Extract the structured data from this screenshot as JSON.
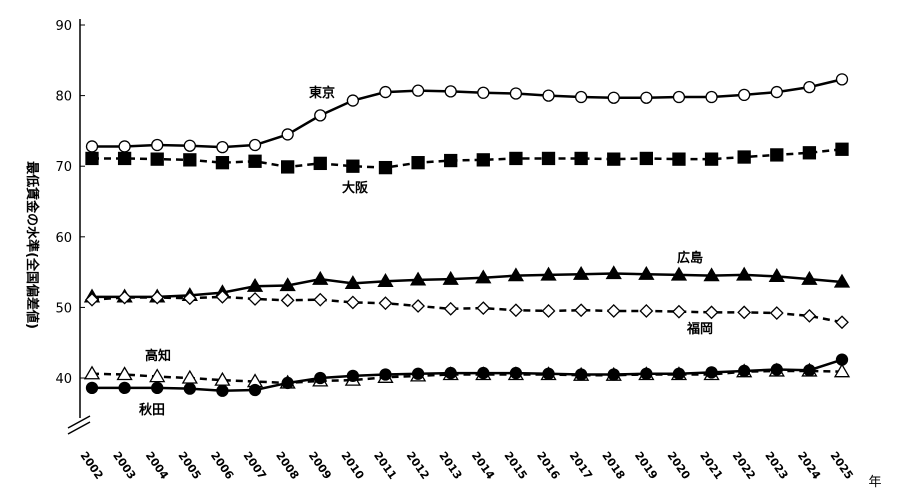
{
  "chart_data": {
    "type": "line",
    "y_label": "最低賃金の水準(全国偏差値)",
    "x_unit": "年",
    "categories": [
      "2002",
      "2003",
      "2004",
      "2005",
      "2006",
      "2007",
      "2008",
      "2009",
      "2010",
      "2011",
      "2012",
      "2013",
      "2014",
      "2015",
      "2016",
      "2017",
      "2018",
      "2019",
      "2020",
      "2021",
      "2022",
      "2023",
      "2024",
      "2025"
    ],
    "ylim": [
      32,
      90
    ],
    "yticks": [
      40,
      50,
      60,
      70,
      80,
      90
    ],
    "axis_break": true,
    "series": [
      {
        "name": "東京",
        "color": "#000000",
        "marker": "circle",
        "marker_fill": "#ffffff",
        "dashed": false,
        "values": [
          72.8,
          72.8,
          73.0,
          72.9,
          72.7,
          73.0,
          74.5,
          77.2,
          79.3,
          80.5,
          80.7,
          80.6,
          80.4,
          80.3,
          80.0,
          79.8,
          79.7,
          79.7,
          79.8,
          79.8,
          80.1,
          80.5,
          81.2,
          82.3
        ]
      },
      {
        "name": "大阪",
        "color": "#000000",
        "marker": "square",
        "marker_fill": "#000000",
        "dashed": true,
        "values": [
          71.1,
          71.1,
          71.0,
          70.9,
          70.5,
          70.7,
          69.9,
          70.4,
          70.0,
          69.8,
          70.5,
          70.8,
          70.9,
          71.1,
          71.1,
          71.1,
          71.0,
          71.1,
          71.0,
          71.0,
          71.3,
          71.6,
          71.9,
          72.4
        ]
      },
      {
        "name": "広島",
        "color": "#000000",
        "marker": "triangle",
        "marker_fill": "#000000",
        "dashed": false,
        "values": [
          51.5,
          51.5,
          51.5,
          51.7,
          52.1,
          53.0,
          53.1,
          54.0,
          53.4,
          53.7,
          53.9,
          54.0,
          54.2,
          54.5,
          54.6,
          54.7,
          54.8,
          54.7,
          54.6,
          54.5,
          54.6,
          54.4,
          54.0,
          53.6
        ]
      },
      {
        "name": "福岡",
        "color": "#000000",
        "marker": "diamond",
        "marker_fill": "#ffffff",
        "dashed": true,
        "values": [
          51.1,
          51.4,
          51.4,
          51.3,
          51.5,
          51.2,
          51.0,
          51.1,
          50.7,
          50.6,
          50.2,
          49.8,
          49.9,
          49.6,
          49.5,
          49.6,
          49.5,
          49.5,
          49.4,
          49.3,
          49.3,
          49.2,
          48.8,
          47.9
        ]
      },
      {
        "name": "高知",
        "color": "#000000",
        "marker": "triangle",
        "marker_fill": "#ffffff",
        "dashed": true,
        "values": [
          40.6,
          40.5,
          40.2,
          40.0,
          39.7,
          39.5,
          39.3,
          39.6,
          39.7,
          40.1,
          40.3,
          40.5,
          40.5,
          40.5,
          40.5,
          40.4,
          40.4,
          40.5,
          40.5,
          40.5,
          40.9,
          41.0,
          41.0,
          40.9
        ]
      },
      {
        "name": "秋田",
        "color": "#000000",
        "marker": "circle",
        "marker_fill": "#000000",
        "dashed": false,
        "values": [
          38.6,
          38.6,
          38.6,
          38.5,
          38.2,
          38.3,
          39.3,
          40.0,
          40.3,
          40.5,
          40.6,
          40.7,
          40.7,
          40.7,
          40.6,
          40.5,
          40.5,
          40.6,
          40.6,
          40.8,
          41.0,
          41.2,
          41.1,
          42.6
        ]
      }
    ]
  }
}
